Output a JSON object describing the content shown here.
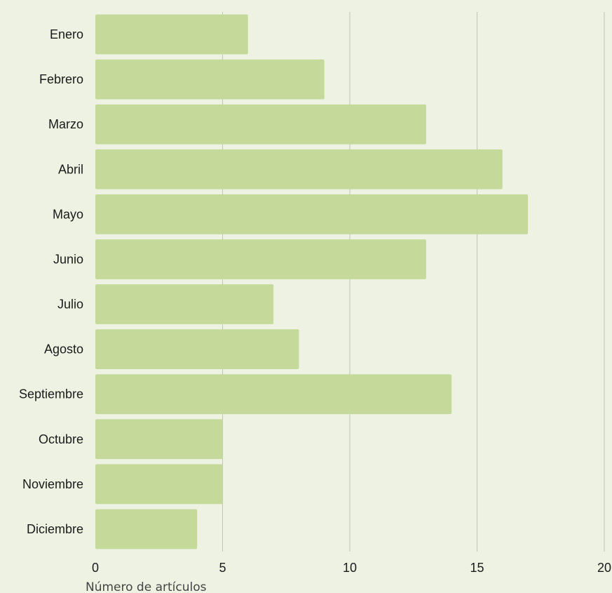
{
  "chart_data": {
    "type": "bar",
    "orientation": "horizontal",
    "categories": [
      "Enero",
      "Febrero",
      "Marzo",
      "Abril",
      "Mayo",
      "Junio",
      "Julio",
      "Agosto",
      "Septiembre",
      "Octubre",
      "Noviembre",
      "Diciembre"
    ],
    "values": [
      6,
      9,
      13,
      16,
      17,
      13,
      7,
      8,
      14,
      5,
      5,
      4
    ],
    "title": "",
    "xlabel": "Número de artículos",
    "ylabel": "",
    "xlim": [
      0,
      20
    ],
    "xticks": [
      "0",
      "5",
      "10",
      "15",
      "20"
    ],
    "grid": "vertical",
    "legend": "none",
    "colors": {
      "background": "#EEF2E2",
      "bar": "#C5DA9A",
      "grid": "#BFC6B4",
      "text": "#1a1a1a"
    }
  }
}
